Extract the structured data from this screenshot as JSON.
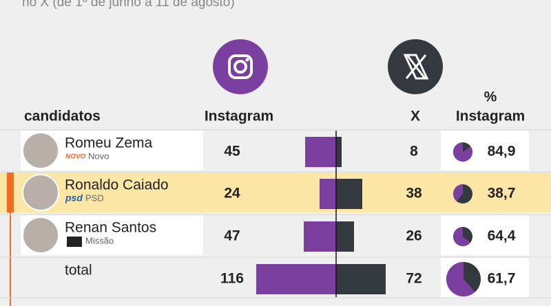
{
  "subtitle": "no X (de 1º de junho a 11 de agosto)",
  "columns": {
    "candidates": "candidatos",
    "instagram": "Instagram",
    "x": "X",
    "pct_top": "%",
    "pct_bottom": "Instagram"
  },
  "rows": [
    {
      "name": "Romeu Zema",
      "logo": "NOVO",
      "party": "Novo",
      "instagram": 45,
      "x": 8,
      "pct": 84.9,
      "pct_label": "84,9"
    },
    {
      "name": "Ronaldo Caiado",
      "logo": "psd",
      "party": "PSD",
      "instagram": 24,
      "x": 38,
      "pct": 38.7,
      "pct_label": "38,7"
    },
    {
      "name": "Renan Santos",
      "party": "Missão",
      "instagram": 47,
      "x": 26,
      "pct": 64.4,
      "pct_label": "64,4"
    },
    {
      "name": "total",
      "instagram": 116,
      "x": 72,
      "pct": 61.7,
      "pct_label": "61,7"
    }
  ]
}
